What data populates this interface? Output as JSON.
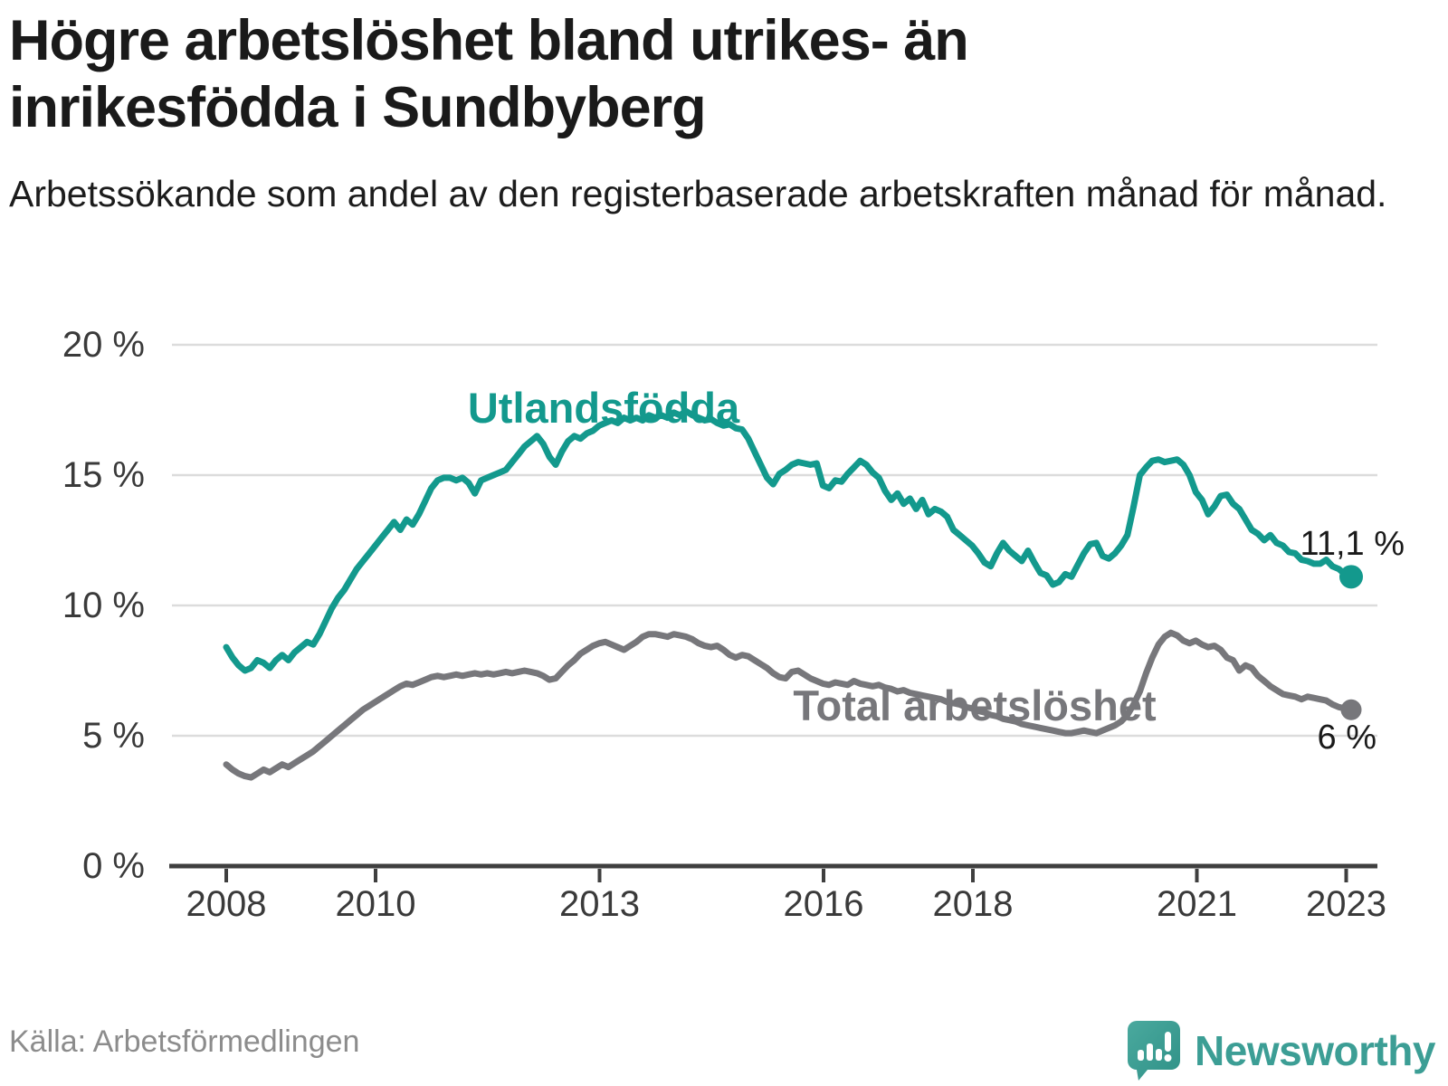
{
  "header": {
    "title": "Högre arbetslöshet bland utrikes- än inrikesfödda i Sundbyberg",
    "subtitle": "Arbetssökande som andel av den registerbaserade arbetskraften månad för månad."
  },
  "footer": {
    "source": "Källa: Arbetsförmedlingen",
    "logo_text": "Newsworthy"
  },
  "colors": {
    "foreign_born": "#13998d",
    "total": "#77777b",
    "grid": "#dcdcdc",
    "axis": "#3f3f3f",
    "tick_label": "#3a3a3a",
    "value_label": "#1a1a1a",
    "source_text": "#8c8c8c",
    "logo": "#3c9e95"
  },
  "chart_data": {
    "type": "line",
    "title": "Högre arbetslöshet bland utrikes- än inrikesfödda i Sundbyberg",
    "xlabel": "",
    "ylabel": "",
    "ylim": [
      0,
      20
    ],
    "grid": "horizontal",
    "x_start": "2008-01",
    "x_end": "2023-02",
    "x_ticks": [
      2008,
      2010,
      2013,
      2016,
      2018,
      2021,
      2023
    ],
    "y_ticks": [
      0,
      5,
      10,
      15,
      20
    ],
    "y_tick_labels": [
      "0 %",
      "5 %",
      "10 %",
      "15 %",
      "20 %"
    ],
    "legend_position": "inline-labels",
    "series": [
      {
        "name": "Utlandsfödda",
        "end_label": "11,1 %",
        "color": "#13998d",
        "values": [
          8.4,
          8.0,
          7.7,
          7.5,
          7.6,
          7.9,
          7.8,
          7.6,
          7.9,
          8.1,
          7.9,
          8.2,
          8.4,
          8.6,
          8.5,
          8.9,
          9.4,
          9.9,
          10.3,
          10.6,
          11.0,
          11.4,
          11.7,
          12.0,
          12.3,
          12.6,
          12.9,
          13.2,
          12.9,
          13.3,
          13.1,
          13.5,
          14.0,
          14.5,
          14.8,
          14.9,
          14.9,
          14.8,
          14.9,
          14.7,
          14.3,
          14.8,
          14.9,
          15.0,
          15.1,
          15.2,
          15.5,
          15.8,
          16.1,
          16.3,
          16.5,
          16.2,
          15.7,
          15.4,
          15.9,
          16.3,
          16.5,
          16.4,
          16.6,
          16.7,
          16.9,
          17.0,
          17.1,
          17.0,
          17.2,
          17.1,
          17.2,
          17.1,
          17.3,
          17.2,
          17.3,
          17.2,
          17.4,
          17.3,
          17.45,
          17.3,
          17.2,
          17.1,
          17.15,
          17.0,
          16.9,
          16.95,
          16.8,
          16.75,
          16.4,
          15.9,
          15.4,
          14.9,
          14.65,
          15.05,
          15.2,
          15.4,
          15.5,
          15.45,
          15.4,
          15.45,
          14.6,
          14.5,
          14.8,
          14.75,
          15.05,
          15.3,
          15.55,
          15.4,
          15.1,
          14.9,
          14.4,
          14.05,
          14.3,
          13.9,
          14.1,
          13.7,
          14.05,
          13.5,
          13.7,
          13.6,
          13.4,
          12.9,
          12.7,
          12.5,
          12.3,
          12.0,
          11.65,
          11.5,
          12.0,
          12.4,
          12.1,
          11.9,
          11.7,
          12.1,
          11.65,
          11.25,
          11.15,
          10.8,
          10.9,
          11.2,
          11.1,
          11.55,
          12.0,
          12.35,
          12.4,
          11.9,
          11.8,
          12.0,
          12.3,
          12.7,
          13.8,
          15.0,
          15.3,
          15.55,
          15.6,
          15.5,
          15.55,
          15.6,
          15.4,
          15.0,
          14.35,
          14.05,
          13.5,
          13.8,
          14.2,
          14.25,
          13.9,
          13.7,
          13.3,
          12.9,
          12.75,
          12.5,
          12.7,
          12.4,
          12.3,
          12.05,
          12.0,
          11.75,
          11.7,
          11.6,
          11.6,
          11.75,
          11.5,
          11.4,
          11.2,
          11.1
        ]
      },
      {
        "name": "Total arbetslöshet",
        "end_label": "6 %",
        "color": "#77777b",
        "values": [
          3.9,
          3.7,
          3.55,
          3.45,
          3.4,
          3.55,
          3.7,
          3.6,
          3.75,
          3.9,
          3.8,
          3.95,
          4.1,
          4.25,
          4.4,
          4.6,
          4.8,
          5.0,
          5.2,
          5.4,
          5.6,
          5.8,
          6.0,
          6.15,
          6.3,
          6.45,
          6.6,
          6.75,
          6.9,
          7.0,
          6.95,
          7.05,
          7.15,
          7.25,
          7.3,
          7.25,
          7.3,
          7.35,
          7.3,
          7.35,
          7.4,
          7.35,
          7.4,
          7.35,
          7.4,
          7.45,
          7.4,
          7.45,
          7.5,
          7.45,
          7.4,
          7.3,
          7.15,
          7.2,
          7.45,
          7.7,
          7.9,
          8.15,
          8.3,
          8.45,
          8.55,
          8.6,
          8.5,
          8.4,
          8.3,
          8.45,
          8.6,
          8.8,
          8.9,
          8.9,
          8.85,
          8.8,
          8.9,
          8.85,
          8.8,
          8.7,
          8.55,
          8.45,
          8.4,
          8.45,
          8.3,
          8.1,
          8.0,
          8.1,
          8.05,
          7.9,
          7.75,
          7.6,
          7.4,
          7.25,
          7.2,
          7.45,
          7.5,
          7.35,
          7.2,
          7.1,
          7.0,
          6.95,
          7.05,
          7.0,
          6.95,
          7.1,
          7.0,
          6.95,
          6.9,
          6.95,
          6.85,
          6.8,
          6.7,
          6.75,
          6.65,
          6.6,
          6.55,
          6.5,
          6.45,
          6.4,
          6.3,
          6.25,
          6.2,
          6.1,
          6.05,
          5.95,
          5.9,
          5.8,
          5.75,
          5.65,
          5.6,
          5.55,
          5.45,
          5.4,
          5.35,
          5.3,
          5.25,
          5.2,
          5.15,
          5.1,
          5.1,
          5.15,
          5.2,
          5.15,
          5.1,
          5.2,
          5.3,
          5.4,
          5.55,
          5.8,
          6.2,
          6.7,
          7.4,
          8.0,
          8.5,
          8.8,
          8.95,
          8.85,
          8.65,
          8.55,
          8.65,
          8.5,
          8.4,
          8.45,
          8.3,
          8.0,
          7.9,
          7.5,
          7.7,
          7.6,
          7.3,
          7.1,
          6.9,
          6.75,
          6.6,
          6.55,
          6.5,
          6.4,
          6.5,
          6.45,
          6.4,
          6.35,
          6.2,
          6.1,
          6.05,
          6.0
        ]
      }
    ]
  }
}
